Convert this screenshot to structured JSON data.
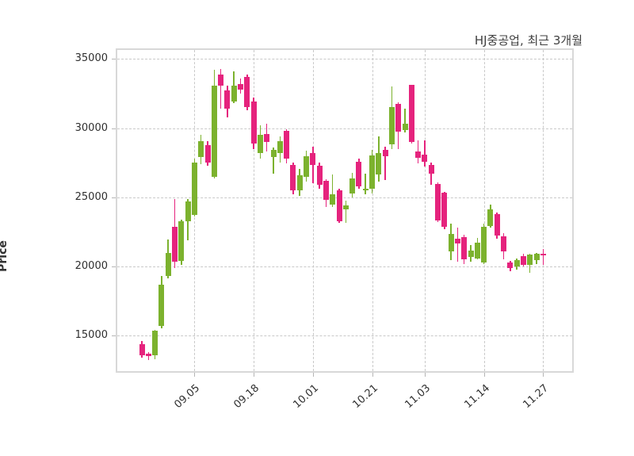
{
  "header": {
    "title": "HJ중공업, 최근 3개월"
  },
  "axes": {
    "y_axis_label": "Price"
  },
  "colors": {
    "up": "#7cb22e",
    "down": "#e5237d",
    "grid": "#c9c9c9",
    "spine": "#d8d8d8",
    "tick_text": "#2f2f2f",
    "title_text": "#3f3f3f",
    "background": "#ffffff"
  },
  "chart_data": {
    "type": "candlestick",
    "title": "HJ중공업, 최근 3개월",
    "ylabel": "Price",
    "grid": "dashed both axes",
    "legend": "none",
    "ylim": [
      12450,
      35650
    ],
    "y_ticks": [
      15000,
      20000,
      25000,
      30000,
      35000
    ],
    "x_ticks": [
      {
        "label": "09.05",
        "index": 8
      },
      {
        "label": "09.18",
        "index": 17
      },
      {
        "label": "10.01",
        "index": 26
      },
      {
        "label": "10.21",
        "index": 35
      },
      {
        "label": "11.03",
        "index": 43
      },
      {
        "label": "11.14",
        "index": 52
      },
      {
        "label": "11.27",
        "index": 61
      }
    ],
    "candle_columns": [
      "open",
      "high",
      "low",
      "close"
    ],
    "candles": [
      [
        14400,
        14650,
        13450,
        13600
      ],
      [
        13700,
        13800,
        13250,
        13550
      ],
      [
        13600,
        15450,
        13300,
        15350
      ],
      [
        15700,
        19350,
        15550,
        18700
      ],
      [
        19350,
        21950,
        19150,
        21000
      ],
      [
        22900,
        24900,
        19900,
        20350
      ],
      [
        20400,
        23400,
        20150,
        23250
      ],
      [
        23300,
        24900,
        21900,
        24700
      ],
      [
        23750,
        27800,
        23600,
        27500
      ],
      [
        27900,
        29500,
        27400,
        29050
      ],
      [
        28800,
        29050,
        27300,
        27500
      ],
      [
        26500,
        34200,
        26350,
        33050
      ],
      [
        33900,
        34250,
        31400,
        33050
      ],
      [
        32750,
        33050,
        30800,
        31400
      ],
      [
        31950,
        34100,
        31800,
        33100
      ],
      [
        33200,
        33600,
        32500,
        32800
      ],
      [
        33700,
        33900,
        31300,
        31500
      ],
      [
        31950,
        32200,
        28500,
        28900
      ],
      [
        28200,
        30200,
        27800,
        29500
      ],
      [
        29600,
        30350,
        28300,
        29000
      ],
      [
        27900,
        28600,
        26700,
        28450
      ],
      [
        28200,
        29400,
        27500,
        29050
      ],
      [
        29800,
        29900,
        27450,
        27800
      ],
      [
        27350,
        27500,
        25200,
        25500
      ],
      [
        25500,
        27050,
        25100,
        26600
      ],
      [
        26500,
        28350,
        26150,
        27950
      ],
      [
        28200,
        28650,
        26050,
        27350
      ],
      [
        27300,
        27500,
        25650,
        25900
      ],
      [
        26200,
        26300,
        24300,
        24800
      ],
      [
        24500,
        26650,
        24300,
        25200
      ],
      [
        25500,
        25600,
        23150,
        23300
      ],
      [
        24150,
        24750,
        23150,
        24450
      ],
      [
        25300,
        26750,
        25000,
        26350
      ],
      [
        27600,
        27800,
        25600,
        25800
      ],
      [
        25500,
        26700,
        25200,
        25650
      ],
      [
        25600,
        28450,
        25300,
        28050
      ],
      [
        26650,
        29400,
        26150,
        28200
      ],
      [
        28450,
        28650,
        26250,
        27950
      ],
      [
        28850,
        33000,
        28500,
        31500
      ],
      [
        31750,
        31850,
        28500,
        29750
      ],
      [
        29850,
        31400,
        29700,
        30300
      ],
      [
        33150,
        33150,
        28900,
        29000
      ],
      [
        28300,
        29100,
        27450,
        27850
      ],
      [
        28100,
        29100,
        27200,
        27550
      ],
      [
        27350,
        27500,
        25900,
        26700
      ],
      [
        25950,
        26100,
        23200,
        23350
      ],
      [
        25350,
        25400,
        22700,
        22850
      ],
      [
        21100,
        23100,
        20450,
        22350
      ],
      [
        22000,
        22800,
        20350,
        21700
      ],
      [
        22150,
        22300,
        20200,
        20500
      ],
      [
        20700,
        21550,
        20350,
        21150
      ],
      [
        20600,
        22050,
        20500,
        21750
      ],
      [
        20300,
        23100,
        20200,
        22900
      ],
      [
        22950,
        24480,
        22800,
        24150
      ],
      [
        23800,
        23900,
        22000,
        22250
      ],
      [
        22200,
        22400,
        20500,
        21100
      ],
      [
        20300,
        20400,
        19650,
        19900
      ],
      [
        20000,
        20600,
        19800,
        20450
      ],
      [
        20750,
        20900,
        20000,
        20150
      ],
      [
        20150,
        20900,
        19550,
        20850
      ],
      [
        20450,
        21000,
        20200,
        20900
      ],
      [
        20900,
        21270,
        20100,
        20800
      ]
    ]
  }
}
